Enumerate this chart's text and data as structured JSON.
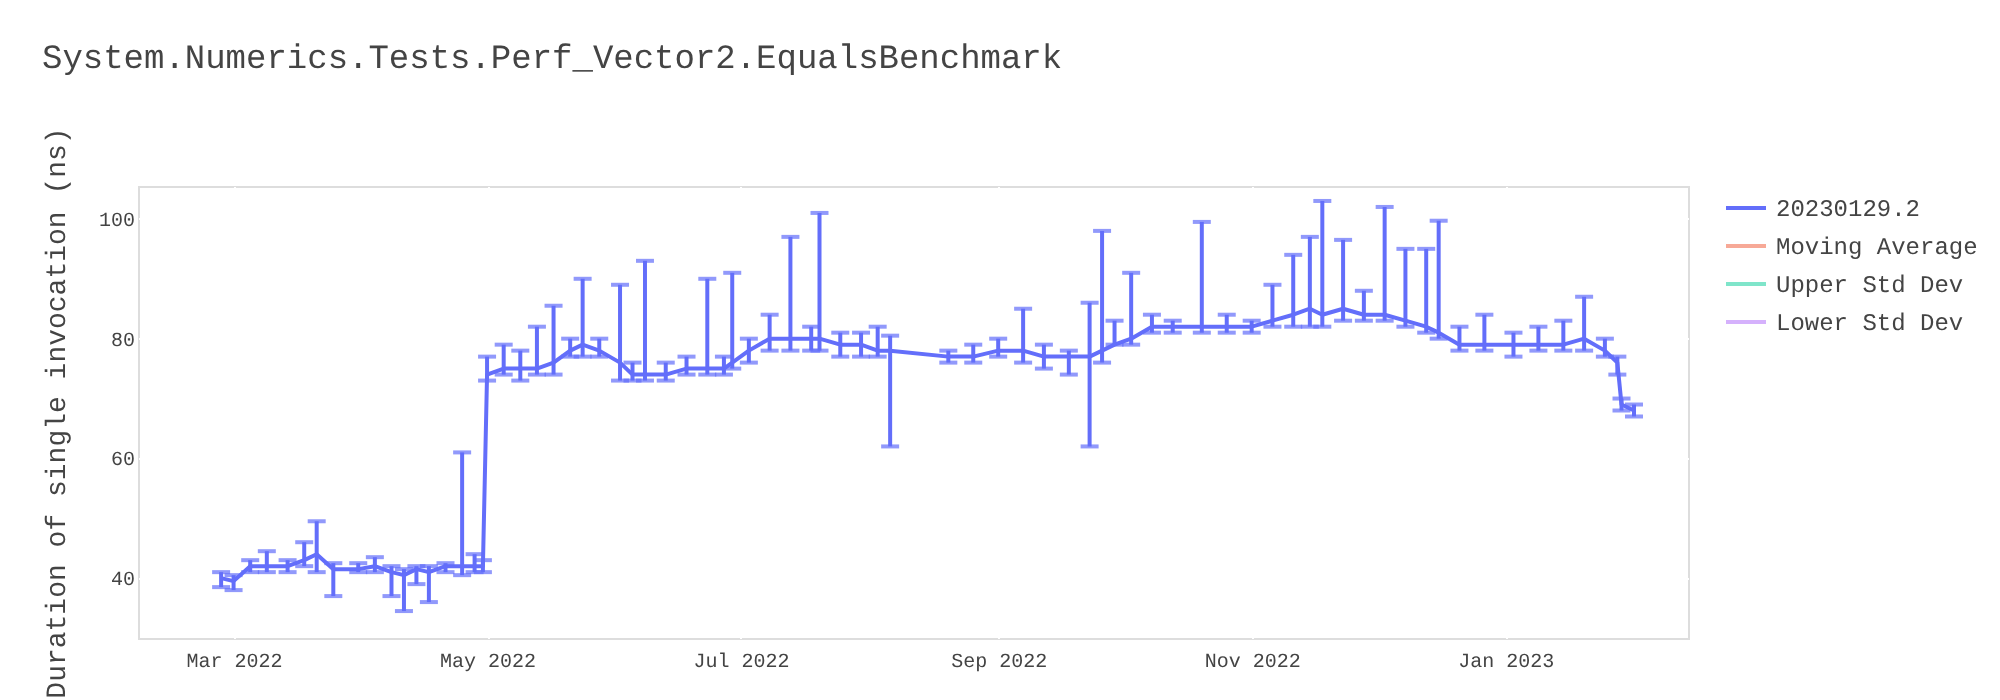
{
  "chart_data": {
    "type": "line",
    "title": "System.Numerics.Tests.Perf_Vector2.EqualsBenchmark",
    "ylabel": "Duration of single invocation (ns)",
    "x": [
      "2022-02-26",
      "2022-03-01",
      "2022-03-05",
      "2022-03-09",
      "2022-03-14",
      "2022-03-18",
      "2022-03-21",
      "2022-03-25",
      "2022-03-31",
      "2022-04-04",
      "2022-04-08",
      "2022-04-11",
      "2022-04-14",
      "2022-04-17",
      "2022-04-21",
      "2022-04-25",
      "2022-04-28",
      "2022-04-30",
      "2022-05-01",
      "2022-05-05",
      "2022-05-09",
      "2022-05-13",
      "2022-05-17",
      "2022-05-21",
      "2022-05-24",
      "2022-05-28",
      "2022-06-02",
      "2022-06-05",
      "2022-06-08",
      "2022-06-13",
      "2022-06-18",
      "2022-06-23",
      "2022-06-27",
      "2022-06-29",
      "2022-07-03",
      "2022-07-08",
      "2022-07-13",
      "2022-07-18",
      "2022-07-20",
      "2022-07-25",
      "2022-07-30",
      "2022-08-03",
      "2022-08-06",
      "2022-08-20",
      "2022-08-26",
      "2022-09-01",
      "2022-09-07",
      "2022-09-12",
      "2022-09-18",
      "2022-09-23",
      "2022-09-26",
      "2022-09-29",
      "2022-10-03",
      "2022-10-08",
      "2022-10-13",
      "2022-10-20",
      "2022-10-26",
      "2022-11-01",
      "2022-11-06",
      "2022-11-11",
      "2022-11-15",
      "2022-11-18",
      "2022-11-23",
      "2022-11-28",
      "2022-12-03",
      "2022-12-08",
      "2022-12-13",
      "2022-12-16",
      "2022-12-21",
      "2022-12-27",
      "2023-01-03",
      "2023-01-09",
      "2023-01-15",
      "2023-01-20",
      "2023-01-25",
      "2023-01-28",
      "2023-01-29",
      "2023-02-01"
    ],
    "xlim": [
      "2022-02-06",
      "2023-02-14"
    ],
    "xticks": [
      {
        "value": "2022-03-01",
        "label": "Mar 2022"
      },
      {
        "value": "2022-05-01",
        "label": "May 2022"
      },
      {
        "value": "2022-07-01",
        "label": "Jul 2022"
      },
      {
        "value": "2022-09-01",
        "label": "Sep 2022"
      },
      {
        "value": "2022-11-01",
        "label": "Nov 2022"
      },
      {
        "value": "2023-01-01",
        "label": "Jan 2023"
      }
    ],
    "ylim": [
      30,
      105.5
    ],
    "yticks": [
      40,
      60,
      80,
      100
    ],
    "grid": true,
    "legend": "right",
    "line_style": "solid",
    "series": [
      {
        "name": "20230129.2",
        "color": "#636efa",
        "values": [
          40,
          39.5,
          42,
          42,
          42,
          43,
          44,
          41.5,
          41.5,
          42,
          41,
          40.5,
          41.5,
          41,
          42,
          42,
          42,
          42,
          74,
          75,
          75,
          75,
          76,
          78,
          79,
          78,
          76,
          74,
          74,
          74,
          75,
          75,
          75,
          76,
          78,
          80,
          80,
          80,
          80,
          79,
          79,
          78,
          78,
          77,
          77,
          78,
          78,
          77,
          77,
          77,
          78,
          79,
          80,
          82,
          82,
          82,
          82,
          82,
          83,
          84,
          85,
          84,
          85,
          84,
          84,
          83,
          82,
          81,
          79,
          79,
          79,
          79,
          79,
          80,
          78,
          76,
          69,
          68
        ],
        "errors": [
          [
            38.5,
            41
          ],
          [
            38,
            40.5
          ],
          [
            41,
            43
          ],
          [
            41,
            44.5
          ],
          [
            41,
            43
          ],
          [
            42,
            46
          ],
          [
            41,
            49.5
          ],
          [
            37,
            42.5
          ],
          [
            41,
            42.5
          ],
          [
            41,
            43.5
          ],
          [
            37,
            42
          ],
          [
            34.5,
            41.5
          ],
          [
            39,
            42
          ],
          [
            36,
            42
          ],
          [
            41,
            42.5
          ],
          [
            40.5,
            61
          ],
          [
            41,
            44
          ],
          [
            41,
            43
          ],
          [
            73,
            77
          ],
          [
            74,
            79
          ],
          [
            73,
            78
          ],
          [
            74,
            82
          ],
          [
            74,
            85.5
          ],
          [
            77,
            80
          ],
          [
            77,
            90
          ],
          [
            77,
            80
          ],
          [
            73,
            89
          ],
          [
            73,
            76
          ],
          [
            73,
            93
          ],
          [
            73,
            76
          ],
          [
            74,
            77
          ],
          [
            74,
            90
          ],
          [
            74,
            77
          ],
          [
            75,
            91
          ],
          [
            76,
            80
          ],
          [
            78,
            84
          ],
          [
            78,
            97
          ],
          [
            78,
            82
          ],
          [
            78,
            101
          ],
          [
            77,
            81
          ],
          [
            77,
            81
          ],
          [
            77,
            82
          ],
          [
            62,
            80.5
          ],
          [
            76,
            78
          ],
          [
            76,
            79
          ],
          [
            77,
            80
          ],
          [
            76,
            85
          ],
          [
            75,
            79
          ],
          [
            74,
            78
          ],
          [
            62,
            86
          ],
          [
            76,
            98
          ],
          [
            79,
            83
          ],
          [
            79,
            91
          ],
          [
            81,
            84
          ],
          [
            81,
            83
          ],
          [
            81,
            99.5
          ],
          [
            81,
            84
          ],
          [
            81,
            83
          ],
          [
            82,
            89
          ],
          [
            82,
            94
          ],
          [
            82,
            97
          ],
          [
            82,
            103
          ],
          [
            83,
            96.5
          ],
          [
            83,
            88
          ],
          [
            83,
            102
          ],
          [
            82,
            95
          ],
          [
            81,
            95
          ],
          [
            80,
            99.7
          ],
          [
            78,
            82
          ],
          [
            78,
            84
          ],
          [
            77,
            81
          ],
          [
            78,
            82
          ],
          [
            78,
            83
          ],
          [
            78,
            87
          ],
          [
            77,
            80
          ],
          [
            74,
            77
          ],
          [
            68,
            70
          ],
          [
            67,
            69
          ]
        ]
      },
      {
        "name": "Moving Average",
        "color": "#f7a997",
        "values": [
          null,
          null,
          null,
          null,
          null,
          null,
          null,
          null,
          null,
          null,
          null,
          null,
          null,
          null,
          null,
          null,
          null,
          null,
          null,
          null,
          null,
          null,
          null,
          null,
          null,
          null,
          null,
          null,
          null,
          null,
          null,
          null,
          null,
          null,
          null,
          null,
          null,
          null,
          null,
          null,
          null,
          null,
          null,
          null,
          null,
          null,
          null,
          null,
          null,
          null,
          null,
          null,
          null,
          null,
          null,
          null,
          null,
          null,
          null,
          null,
          null,
          null,
          null,
          null,
          null,
          null,
          null,
          null,
          null,
          null,
          null,
          null,
          null,
          null,
          null,
          null,
          null,
          null
        ]
      },
      {
        "name": "Upper Std Dev",
        "color": "#7fe5ca",
        "values": [
          null,
          null,
          null,
          null,
          null,
          null,
          null,
          null,
          null,
          null,
          null,
          null,
          null,
          null,
          null,
          null,
          null,
          null,
          null,
          null,
          null,
          null,
          null,
          null,
          null,
          null,
          null,
          null,
          null,
          null,
          null,
          null,
          null,
          null,
          null,
          null,
          null,
          null,
          null,
          null,
          null,
          null,
          null,
          null,
          null,
          null,
          null,
          null,
          null,
          null,
          null,
          null,
          null,
          null,
          null,
          null,
          null,
          null,
          null,
          null,
          null,
          null,
          null,
          null,
          null,
          null,
          null,
          null,
          null,
          null,
          null,
          null,
          null,
          null,
          null,
          null,
          null,
          null
        ]
      },
      {
        "name": "Lower Std Dev",
        "color": "#d5b1fc",
        "values": [
          null,
          null,
          null,
          null,
          null,
          null,
          null,
          null,
          null,
          null,
          null,
          null,
          null,
          null,
          null,
          null,
          null,
          null,
          null,
          null,
          null,
          null,
          null,
          null,
          null,
          null,
          null,
          null,
          null,
          null,
          null,
          null,
          null,
          null,
          null,
          null,
          null,
          null,
          null,
          null,
          null,
          null,
          null,
          null,
          null,
          null,
          null,
          null,
          null,
          null,
          null,
          null,
          null,
          null,
          null,
          null,
          null,
          null,
          null,
          null,
          null,
          null,
          null,
          null,
          null,
          null,
          null,
          null,
          null,
          null,
          null,
          null,
          null,
          null,
          null,
          null,
          null,
          null
        ]
      }
    ]
  }
}
